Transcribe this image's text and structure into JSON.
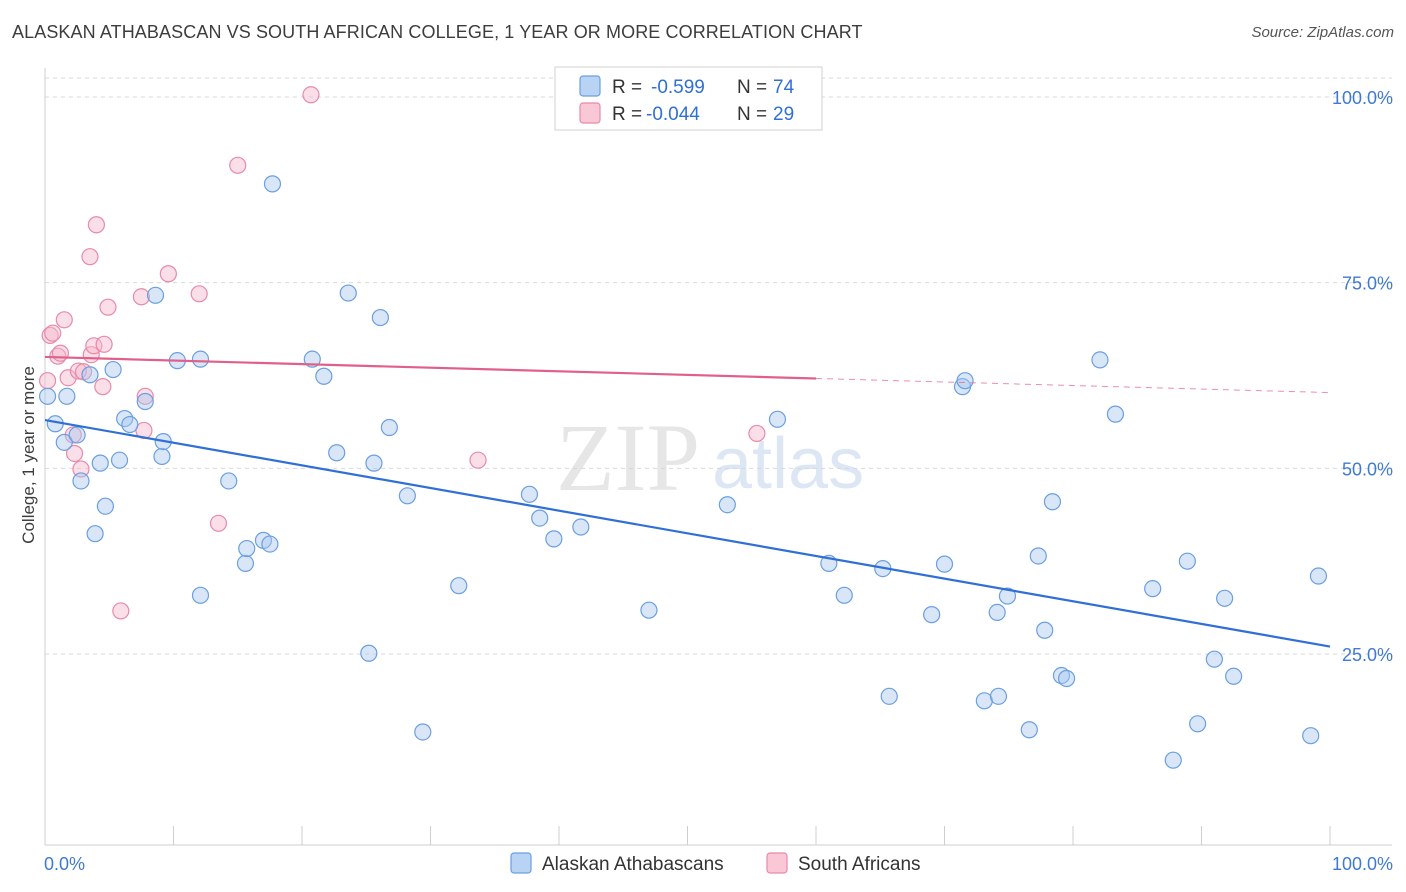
{
  "title": "ALASKAN ATHABASCAN VS SOUTH AFRICAN COLLEGE, 1 YEAR OR MORE CORRELATION CHART",
  "source": "Source: ZipAtlas.com",
  "watermark": {
    "zip": "ZIP",
    "atlas": "atlas"
  },
  "colors": {
    "blue_fill": "#a9c8f0",
    "blue_stroke": "#6b9fe0",
    "blue_line": "#2f6fd6",
    "pink_fill": "#f5b8cb",
    "pink_stroke": "#e88aa8",
    "pink_line": "#e0608a",
    "grid": "#d9d9d9",
    "tick_text": "#3f7ad1"
  },
  "legend": {
    "rows": [
      {
        "r_label": "R =",
        "r_value": "-0.599",
        "n_label": "N =",
        "n_value": "74"
      },
      {
        "r_label": "R =",
        "r_value": "-0.044",
        "n_label": "N =",
        "n_value": "29"
      }
    ]
  },
  "bottom_legend": [
    "Alaskan Athabascans",
    "South Africans"
  ],
  "chart_data": {
    "type": "scatter",
    "title": "ALASKAN ATHABASCAN VS SOUTH AFRICAN COLLEGE, 1 YEAR OR MORE CORRELATION CHART",
    "xlabel": "",
    "ylabel": "College, 1 year or more",
    "xlim": [
      0,
      100
    ],
    "ylim": [
      0,
      105
    ],
    "x_tick_labels": [
      "0.0%",
      "100.0%"
    ],
    "y_ticks": [
      25,
      50,
      75,
      100
    ],
    "y_tick_labels": [
      "25.0%",
      "50.0%",
      "75.0%",
      "100.0%"
    ],
    "grid": true,
    "legend_position": "top-center",
    "series": [
      {
        "name": "Alaskan Athabascans",
        "stats": {
          "R": -0.599,
          "N": 74
        },
        "trend": {
          "x0": 0,
          "y0": 56.5,
          "x1": 100,
          "y1": 26
        },
        "points": [
          [
            0.2,
            59.7
          ],
          [
            0.8,
            56
          ],
          [
            1.5,
            53.5
          ],
          [
            1.7,
            59.7
          ],
          [
            2.5,
            54.5
          ],
          [
            2.8,
            48.3
          ],
          [
            3.5,
            62.6
          ],
          [
            3.9,
            41.2
          ],
          [
            4.3,
            50.7
          ],
          [
            4.7,
            44.9
          ],
          [
            5.3,
            63.3
          ],
          [
            5.8,
            51.1
          ],
          [
            6.2,
            56.7
          ],
          [
            6.6,
            55.9
          ],
          [
            7.8,
            59
          ],
          [
            8.6,
            73.3
          ],
          [
            9.1,
            51.6
          ],
          [
            9.2,
            53.6
          ],
          [
            10.3,
            64.5
          ],
          [
            12.1,
            64.7
          ],
          [
            12.1,
            32.9
          ],
          [
            14.3,
            48.3
          ],
          [
            15.6,
            37.2
          ],
          [
            15.7,
            39.2
          ],
          [
            17.0,
            40.3
          ],
          [
            17.5,
            39.8
          ],
          [
            17.7,
            88.3
          ],
          [
            20.8,
            64.7
          ],
          [
            21.7,
            62.4
          ],
          [
            22.7,
            52.1
          ],
          [
            23.6,
            73.6
          ],
          [
            25.2,
            25.1
          ],
          [
            25.6,
            50.7
          ],
          [
            26.1,
            70.3
          ],
          [
            26.8,
            55.5
          ],
          [
            28.2,
            46.3
          ],
          [
            29.4,
            14.5
          ],
          [
            32.2,
            34.2
          ],
          [
            37.7,
            46.5
          ],
          [
            38.5,
            43.3
          ],
          [
            39.6,
            40.5
          ],
          [
            41.7,
            42.1
          ],
          [
            47.0,
            30.9
          ],
          [
            53.1,
            45.1
          ],
          [
            57.0,
            56.6
          ],
          [
            61.0,
            37.2
          ],
          [
            62.2,
            32.9
          ],
          [
            65.2,
            36.5
          ],
          [
            65.7,
            19.3
          ],
          [
            69.0,
            30.3
          ],
          [
            70.0,
            37.1
          ],
          [
            71.4,
            61.0
          ],
          [
            71.6,
            61.8
          ],
          [
            73.1,
            18.7
          ],
          [
            74.1,
            30.6
          ],
          [
            74.2,
            19.3
          ],
          [
            74.9,
            32.8
          ],
          [
            76.6,
            14.8
          ],
          [
            77.3,
            38.2
          ],
          [
            77.8,
            28.2
          ],
          [
            78.4,
            45.5
          ],
          [
            79.1,
            22.1
          ],
          [
            79.5,
            21.7
          ],
          [
            82.1,
            64.6
          ],
          [
            83.3,
            57.3
          ],
          [
            86.2,
            33.8
          ],
          [
            87.8,
            10.7
          ],
          [
            88.9,
            37.5
          ],
          [
            89.7,
            15.6
          ],
          [
            91.0,
            24.3
          ],
          [
            91.8,
            32.5
          ],
          [
            92.5,
            22.0
          ],
          [
            98.5,
            14.0
          ],
          [
            99.1,
            35.5
          ]
        ]
      },
      {
        "name": "South Africans",
        "stats": {
          "R": -0.044,
          "N": 29
        },
        "trend": {
          "x0": 0,
          "y0": 65.0,
          "x1": 60,
          "y1": 62.1,
          "dash_x1": 100,
          "dash_y1": 60.2
        },
        "points": [
          [
            0.2,
            61.8
          ],
          [
            0.4,
            67.9
          ],
          [
            0.6,
            68.2
          ],
          [
            1.0,
            65.1
          ],
          [
            1.2,
            65.5
          ],
          [
            1.5,
            70
          ],
          [
            1.8,
            62.2
          ],
          [
            2.2,
            54.5
          ],
          [
            2.3,
            52
          ],
          [
            2.6,
            63.1
          ],
          [
            2.8,
            49.9
          ],
          [
            3.0,
            63
          ],
          [
            3.5,
            78.5
          ],
          [
            3.6,
            65.3
          ],
          [
            3.8,
            66.5
          ],
          [
            4.0,
            82.8
          ],
          [
            4.5,
            61
          ],
          [
            4.6,
            66.7
          ],
          [
            4.9,
            71.7
          ],
          [
            5.9,
            30.8
          ],
          [
            7.5,
            73.1
          ],
          [
            7.7,
            55.1
          ],
          [
            7.8,
            59.7
          ],
          [
            9.6,
            76.2
          ],
          [
            12.0,
            73.5
          ],
          [
            13.5,
            42.6
          ],
          [
            15.0,
            90.8
          ],
          [
            20.7,
            100.3
          ],
          [
            33.7,
            51.1
          ]
        ]
      }
    ],
    "extra_pink_point": [
      55.4,
      54.7
    ]
  }
}
